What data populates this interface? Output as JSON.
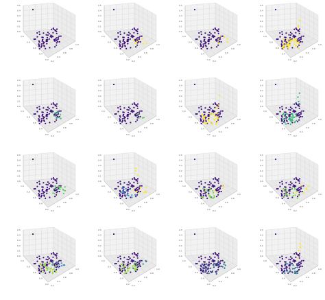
{
  "chart_data": [
    {
      "type": "scatter",
      "title": "",
      "colormap": "viridis",
      "z_ticks": [
        "0.0",
        "0.1",
        "0.2",
        "0.3",
        "0.4",
        "0.5"
      ],
      "x_ticks": [
        "1.0",
        "0.8",
        "0.6",
        "0.4",
        "0.2"
      ],
      "highlight": []
    },
    {
      "type": "scatter",
      "title": "",
      "colormap": "viridis",
      "z_ticks": [
        "0.0",
        "0.1",
        "0.2",
        "0.3",
        "0.4",
        "0.5"
      ],
      "x_ticks": [
        "1.0",
        "0.8",
        "0.6",
        "0.4",
        "0.2"
      ],
      "highlight": [
        {
          "color": "#fde725",
          "region": "right",
          "count": 8
        }
      ]
    },
    {
      "type": "scatter",
      "title": "",
      "colormap": "viridis",
      "z_ticks": [
        "0.0",
        "0.1",
        "0.2",
        "0.3",
        "0.4",
        "0.5"
      ],
      "x_ticks": [
        "1.0",
        "0.8",
        "0.6",
        "0.4",
        "0.2"
      ],
      "highlight": [
        {
          "color": "#fde725",
          "region": "right",
          "count": 6
        }
      ]
    },
    {
      "type": "scatter",
      "title": "",
      "colormap": "viridis",
      "z_ticks": [
        "0.0",
        "0.1",
        "0.2",
        "0.3",
        "0.4",
        "0.5"
      ],
      "x_ticks": [
        "1.0",
        "0.8",
        "0.6",
        "0.4",
        "0.2"
      ],
      "highlight": [
        {
          "color": "#fde725",
          "region": "center",
          "count": 40
        },
        {
          "color": "#fde725",
          "region": "top",
          "count": 4
        }
      ]
    },
    {
      "type": "scatter",
      "title": "",
      "colormap": "viridis",
      "z_ticks": [
        "0.0",
        "0.1",
        "0.2",
        "0.3",
        "0.4",
        "0.5"
      ],
      "x_ticks": [
        "1.0",
        "0.8",
        "0.6",
        "0.4",
        "0.2"
      ],
      "highlight": [
        {
          "color": "#35b779",
          "region": "right",
          "count": 10
        }
      ]
    },
    {
      "type": "scatter",
      "title": "",
      "colormap": "viridis",
      "z_ticks": [
        "0.0",
        "0.1",
        "0.2",
        "0.3",
        "0.4",
        "0.5"
      ],
      "x_ticks": [
        "1.0",
        "0.8",
        "0.6",
        "0.4",
        "0.2"
      ],
      "highlight": [
        {
          "color": "#5ec962",
          "region": "right",
          "count": 5
        }
      ]
    },
    {
      "type": "scatter",
      "title": "",
      "colormap": "viridis",
      "z_ticks": [
        "0.0",
        "0.1",
        "0.2",
        "0.3",
        "0.4",
        "0.5"
      ],
      "x_ticks": [
        "1.0",
        "0.8",
        "0.6",
        "0.4",
        "0.2"
      ],
      "highlight": [
        {
          "color": "#fde725",
          "region": "center",
          "count": 36
        },
        {
          "color": "#fde725",
          "region": "top",
          "count": 4
        }
      ]
    },
    {
      "type": "scatter",
      "title": "",
      "colormap": "viridis",
      "z_ticks": [
        "0.0",
        "0.1",
        "0.2",
        "0.3",
        "0.4",
        "0.5"
      ],
      "x_ticks": [
        "1.0",
        "0.8",
        "0.6",
        "0.4",
        "0.2"
      ],
      "highlight": [
        {
          "color": "#35b779",
          "region": "center",
          "count": 36
        },
        {
          "color": "#21a685",
          "region": "top",
          "count": 4
        }
      ]
    },
    {
      "type": "scatter",
      "title": "",
      "colormap": "viridis",
      "z_ticks": [
        "0.0",
        "0.1",
        "0.2",
        "0.3",
        "0.4",
        "0.5"
      ],
      "x_ticks": [
        "1.0",
        "0.8",
        "0.6",
        "0.4",
        "0.2"
      ],
      "highlight": [
        {
          "color": "#5ec962",
          "region": "right",
          "count": 16
        }
      ]
    },
    {
      "type": "scatter",
      "title": "",
      "colormap": "viridis",
      "z_ticks": [
        "0.0",
        "0.1",
        "0.2",
        "0.3",
        "0.4",
        "0.5"
      ],
      "x_ticks": [
        "1.0",
        "0.8",
        "0.6",
        "0.4",
        "0.2"
      ],
      "highlight": [
        {
          "color": "#3b8bc2",
          "region": "center",
          "count": 18
        },
        {
          "color": "#fde725",
          "region": "right",
          "count": 10
        },
        {
          "color": "#fde725",
          "region": "top",
          "count": 3
        }
      ]
    },
    {
      "type": "scatter",
      "title": "",
      "colormap": "viridis",
      "z_ticks": [
        "0.0",
        "0.1",
        "0.2",
        "0.3",
        "0.4",
        "0.5"
      ],
      "x_ticks": [
        "1.0",
        "0.8",
        "0.6",
        "0.4",
        "0.2"
      ],
      "highlight": [
        {
          "color": "#7ad151",
          "region": "center",
          "count": 20
        },
        {
          "color": "#fde725",
          "region": "right",
          "count": 4
        }
      ]
    },
    {
      "type": "scatter",
      "title": "",
      "colormap": "viridis",
      "z_ticks": [
        "0.0",
        "0.1",
        "0.2",
        "0.3",
        "0.4",
        "0.5"
      ],
      "x_ticks": [
        "1.0",
        "0.8",
        "0.6",
        "0.4",
        "0.2"
      ],
      "highlight": [
        {
          "color": "#7ad151",
          "region": "center",
          "count": 20
        },
        {
          "color": "#fde725",
          "region": "right",
          "count": 6
        }
      ]
    },
    {
      "type": "scatter",
      "title": "",
      "colormap": "viridis",
      "z_ticks": [
        "0.0",
        "0.1",
        "0.2",
        "0.3",
        "0.4",
        "0.5"
      ],
      "x_ticks": [
        "1.0",
        "0.8",
        "0.6",
        "0.4",
        "0.2"
      ],
      "highlight": [
        {
          "color": "#95d840",
          "region": "center",
          "count": 30
        },
        {
          "color": "#3b8bc2",
          "region": "right",
          "count": 10
        }
      ]
    },
    {
      "type": "scatter",
      "title": "",
      "colormap": "viridis",
      "z_ticks": [
        "0.0",
        "0.1",
        "0.2",
        "0.3",
        "0.4",
        "0.5"
      ],
      "x_ticks": [
        "1.0",
        "0.8",
        "0.6",
        "0.4",
        "0.2"
      ],
      "highlight": [
        {
          "color": "#95d840",
          "region": "center",
          "count": 30
        },
        {
          "color": "#2c728e",
          "region": "right",
          "count": 8
        }
      ]
    },
    {
      "type": "scatter",
      "title": "",
      "colormap": "viridis",
      "z_ticks": [
        "0.0",
        "0.1",
        "0.2",
        "0.3",
        "0.4",
        "0.5"
      ],
      "x_ticks": [
        "1.0",
        "0.8",
        "0.6",
        "0.4",
        "0.2"
      ],
      "highlight": [
        {
          "color": "#3b528b",
          "region": "center",
          "count": 34
        },
        {
          "color": "#2c728e",
          "region": "right",
          "count": 10
        }
      ]
    },
    {
      "type": "scatter",
      "title": "",
      "colormap": "viridis",
      "z_ticks": [
        "0.0",
        "0.1",
        "0.2",
        "0.3",
        "0.4",
        "0.5"
      ],
      "x_ticks": [
        "1.0",
        "0.8",
        "0.6",
        "0.4",
        "0.2"
      ],
      "highlight": [
        {
          "color": "#2c728e",
          "region": "center",
          "count": 24
        },
        {
          "color": "#fde725",
          "region": "top",
          "count": 5
        }
      ]
    }
  ],
  "base_color": "#3e0f7a",
  "pane_color": "#f2f2f2",
  "grid_color": "#d6d6d6"
}
